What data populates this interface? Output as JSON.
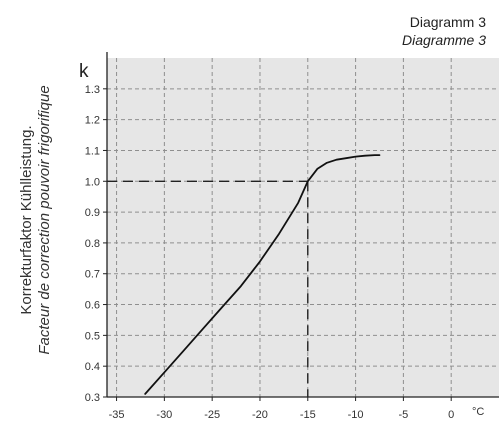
{
  "title": "Diagramm 3",
  "subtitle": "Diagramme 3",
  "chart_data": {
    "type": "line",
    "ylabel": "Korrekturfaktor Kühlleistung.",
    "ylabel_fr": "Facteur de correction pouvoir frigorifique",
    "y_symbol": "k",
    "x_unit": "°C",
    "xlim": [
      -36,
      5
    ],
    "ylim": [
      0.3,
      1.4
    ],
    "x_ticks": [
      "-35",
      "-30",
      "-25",
      "-20",
      "-15",
      "-10",
      "-5",
      "0"
    ],
    "y_ticks": [
      "0.3",
      "0.4",
      "0.5",
      "0.6",
      "0.7",
      "0.8",
      "0.9",
      "1.0",
      "1.1",
      "1.2",
      "1.3"
    ],
    "grid": true,
    "series": [
      {
        "x": [
          -32,
          -30,
          -28,
          -26,
          -24,
          -22,
          -20,
          -18,
          -16,
          -15,
          -14,
          -13,
          -12,
          -11,
          -10,
          -9,
          -8,
          -7.5
        ],
        "y": [
          0.31,
          0.38,
          0.45,
          0.52,
          0.59,
          0.66,
          0.74,
          0.83,
          0.93,
          1.0,
          1.04,
          1.06,
          1.07,
          1.075,
          1.08,
          1.083,
          1.085,
          1.085
        ]
      }
    ],
    "reference": {
      "x": -15,
      "y": 1.0
    }
  },
  "colors": {
    "plot_background": "#e6e6e6",
    "grid": "#8f8f8f",
    "axis": "#222222",
    "curve": "#111111",
    "reference": "#222222"
  }
}
